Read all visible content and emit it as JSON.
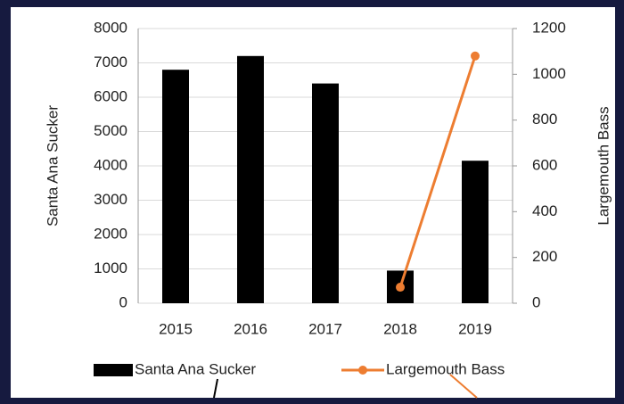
{
  "chart_data": {
    "type": "bar",
    "categories": [
      "2015",
      "2016",
      "2017",
      "2018",
      "2019"
    ],
    "series": [
      {
        "name": "Santa Ana Sucker",
        "color": "#000000",
        "type": "bar",
        "values": [
          6800,
          7200,
          6400,
          950,
          4150
        ]
      },
      {
        "name": "Largemouth Bass",
        "color": "#ed7d31",
        "type": "line",
        "axis": "y2",
        "values": [
          null,
          null,
          null,
          70,
          1080
        ]
      }
    ],
    "y_label": "Santa Ana Sucker",
    "y2_label": "Largemouth Bass",
    "ylim": [
      0,
      8000
    ],
    "yticks": [
      0,
      1000,
      2000,
      3000,
      4000,
      5000,
      6000,
      7000,
      8000
    ],
    "y2lim": [
      0,
      1200
    ],
    "y2ticks": [
      0,
      200,
      400,
      600,
      800,
      1000,
      1200
    ],
    "grid": true,
    "legend": "bottom"
  }
}
